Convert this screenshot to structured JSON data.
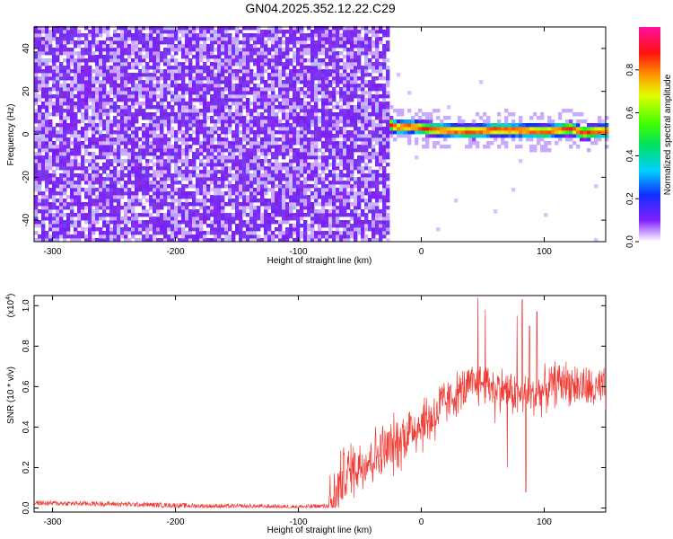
{
  "title": "GN04.2025.352.12.22.C29",
  "colors": {
    "snr_line": "#f03a34",
    "axes": "#000000",
    "spectro_ridge": "#ff3030",
    "spectro_bg_purple": "#7a28f0"
  },
  "colorbar": {
    "label": "Normalized spectral amplitude",
    "ticks": [
      {
        "value": 0.0,
        "label": "0.0"
      },
      {
        "value": 0.2,
        "label": "0.2"
      },
      {
        "value": 0.4,
        "label": "0.4"
      },
      {
        "value": 0.6,
        "label": "0.6"
      },
      {
        "value": 0.8,
        "label": "0.8"
      }
    ],
    "colormap": "rainbow-white-to-magenta"
  },
  "chart_data": [
    {
      "type": "heatmap",
      "name": "spectrogram",
      "xlabel": "Height of straight line (km)",
      "ylabel": "Frequency (Hz)",
      "xlim": [
        -315,
        150
      ],
      "ylim": [
        -50,
        50
      ],
      "x_ticks": [
        {
          "value": -300,
          "label": "-300"
        },
        {
          "value": -200,
          "label": "-200"
        },
        {
          "value": -100,
          "label": "-100"
        },
        {
          "value": 0,
          "label": "0"
        },
        {
          "value": 100,
          "label": "100"
        }
      ],
      "y_ticks": [
        {
          "value": -40,
          "label": "-40"
        },
        {
          "value": -20,
          "label": "-20"
        },
        {
          "value": 0,
          "label": "0"
        },
        {
          "value": 20,
          "label": "20"
        },
        {
          "value": 40,
          "label": "40"
        }
      ],
      "noise_region": {
        "x_start": -315,
        "x_end": -28,
        "amplitude": 0.05
      },
      "signal_ridge": {
        "x_start": -28,
        "x_end": 150,
        "ridge_amplitude": 0.9,
        "points": [
          [
            -28,
            4
          ],
          [
            -20,
            2.5
          ],
          [
            -10,
            3
          ],
          [
            0,
            2
          ],
          [
            10,
            1.5
          ],
          [
            20,
            1
          ],
          [
            40,
            0.5
          ],
          [
            60,
            1.5
          ],
          [
            80,
            1
          ],
          [
            100,
            0.5
          ],
          [
            120,
            2
          ],
          [
            130,
            0
          ],
          [
            150,
            1
          ]
        ]
      }
    },
    {
      "type": "line",
      "name": "snr",
      "xlabel": "Height of straight line (km)",
      "ylabel": "SNR (10 * v/v)",
      "y_multiplier_label": "(x10",
      "y_multiplier_exp": "4",
      "y_multiplier_close": ")",
      "xlim": [
        -315,
        150
      ],
      "ylim": [
        -0.02,
        1.05
      ],
      "x_ticks": [
        {
          "value": -300,
          "label": "-300"
        },
        {
          "value": -200,
          "label": "-200"
        },
        {
          "value": -100,
          "label": "-100"
        },
        {
          "value": 0,
          "label": "0"
        },
        {
          "value": 100,
          "label": "100"
        }
      ],
      "y_ticks": [
        {
          "value": 0.0,
          "label": "0.0"
        },
        {
          "value": 0.2,
          "label": "0.2"
        },
        {
          "value": 0.4,
          "label": "0.4"
        },
        {
          "value": 0.6,
          "label": "0.6"
        },
        {
          "value": 0.8,
          "label": "0.8"
        },
        {
          "value": 1.0,
          "label": "1.0"
        }
      ],
      "envelope": [
        [
          -315,
          0.025
        ],
        [
          -250,
          0.02
        ],
        [
          -180,
          0.01
        ],
        [
          -100,
          0.005
        ],
        [
          -75,
          0.01
        ],
        [
          -70,
          0.05
        ],
        [
          -65,
          0.15
        ],
        [
          -55,
          0.2
        ],
        [
          -40,
          0.25
        ],
        [
          -30,
          0.28
        ],
        [
          -20,
          0.32
        ],
        [
          -10,
          0.38
        ],
        [
          0,
          0.42
        ],
        [
          10,
          0.45
        ],
        [
          20,
          0.52
        ],
        [
          30,
          0.57
        ],
        [
          40,
          0.6
        ],
        [
          50,
          0.62
        ],
        [
          60,
          0.6
        ],
        [
          70,
          0.58
        ],
        [
          80,
          0.55
        ],
        [
          90,
          0.55
        ],
        [
          100,
          0.58
        ],
        [
          110,
          0.62
        ],
        [
          120,
          0.62
        ],
        [
          130,
          0.6
        ],
        [
          140,
          0.58
        ],
        [
          150,
          0.58
        ]
      ],
      "spikes": [
        [
          46,
          1.04
        ],
        [
          52,
          0.98
        ],
        [
          60,
          0.42
        ],
        [
          70,
          0.2
        ],
        [
          78,
          0.95
        ],
        [
          82,
          1.03
        ],
        [
          85,
          0.08
        ],
        [
          88,
          0.9
        ],
        [
          94,
          0.97
        ]
      ]
    }
  ]
}
